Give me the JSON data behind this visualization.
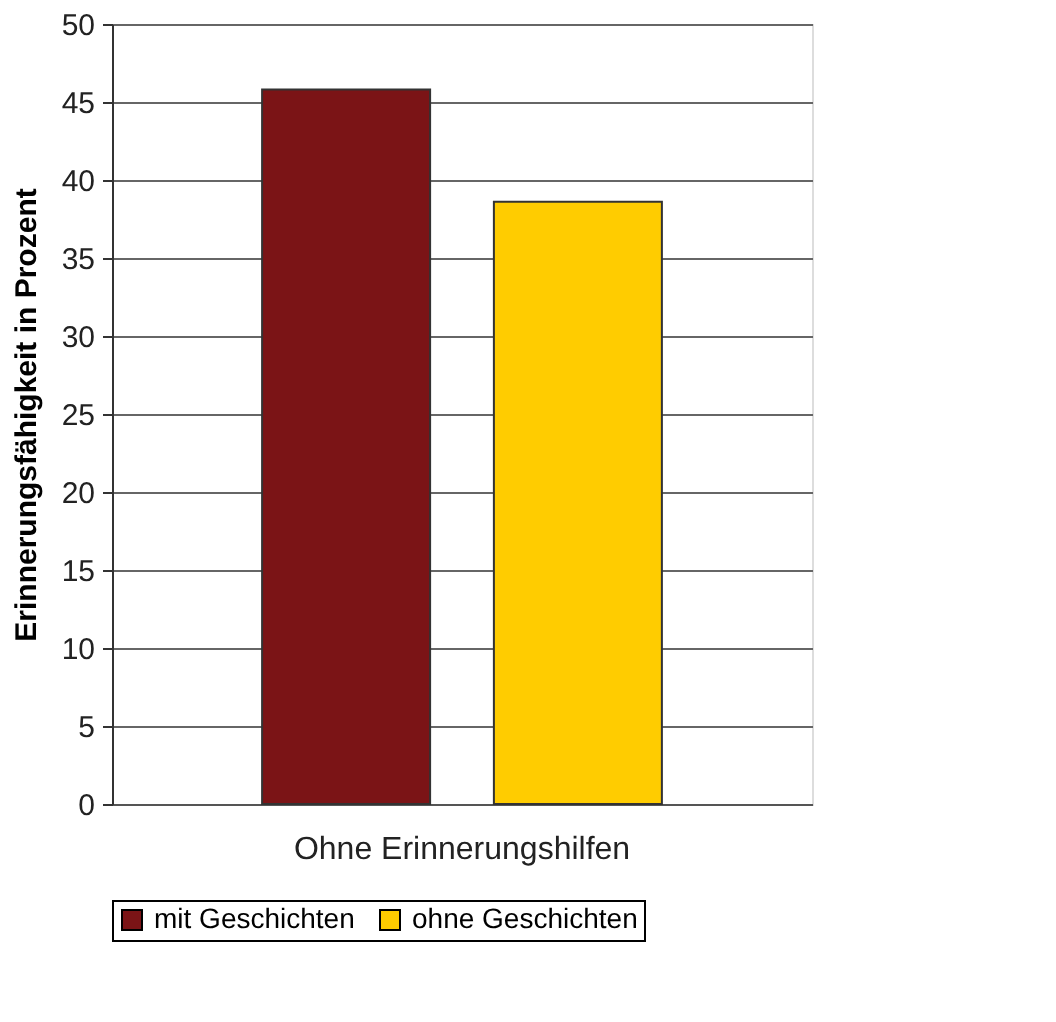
{
  "chart_data": {
    "type": "bar",
    "ylabel": "Erinnerungsfähigkeit in Prozent",
    "categories": [
      "Ohne Erinnerungshilfen"
    ],
    "series": [
      {
        "name": "mit Geschichten",
        "color": "#7b1416",
        "values": [
          45.8
        ]
      },
      {
        "name": "ohne Geschichten",
        "color": "#ffcc00",
        "values": [
          38.6
        ]
      }
    ],
    "ylim": [
      0,
      50
    ],
    "yticks": [
      0,
      5,
      10,
      15,
      20,
      25,
      30,
      35,
      40,
      45,
      50
    ],
    "grid": "y",
    "legend": "bottom"
  }
}
